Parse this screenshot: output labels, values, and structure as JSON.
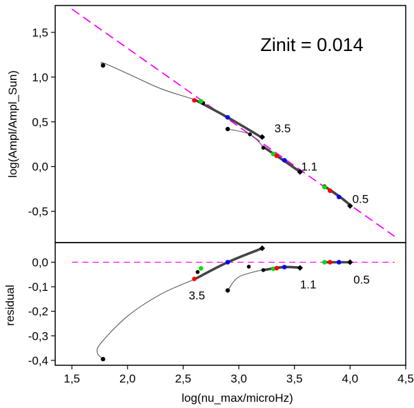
{
  "chart_data": {
    "type": "scatter",
    "xlabel": "log(nu_max/microHz)",
    "xlim": [
      1.35,
      4.5
    ],
    "x_ticks": [
      "1,5",
      "2,0",
      "2,5",
      "3,0",
      "3,5",
      "4,0",
      "4,5"
    ],
    "x_tick_values": [
      1.5,
      2.0,
      2.5,
      3.0,
      3.5,
      4.0,
      4.5
    ],
    "annotation": "Zinit = 0.014",
    "colors": {
      "red": "#ff0000",
      "green": "#00e000",
      "blue": "#0000ff",
      "black": "#000000",
      "magenta": "#ff00ff",
      "grey_line": "#555555"
    },
    "panels": [
      {
        "id": "top",
        "ylabel": "log(Ampl/Ampl_Sun)",
        "ylim": [
          -0.85,
          1.8
        ],
        "y_ticks": [
          "1,5",
          "1,0",
          "0,5",
          "0,0",
          "-0,5"
        ],
        "y_tick_values": [
          1.5,
          1.0,
          0.5,
          0.0,
          -0.5
        ],
        "reference_line": {
          "x": [
            1.5,
            4.4
          ],
          "y": [
            1.76,
            -0.78
          ]
        },
        "tracks": [
          {
            "label": "3.5",
            "label_at": [
              3.32,
              0.43
            ],
            "thin": [
              [
                1.78,
                1.13
              ],
              [
                1.78,
                1.16
              ],
              [
                2.0,
                1.04
              ],
              [
                2.3,
                0.87
              ],
              [
                2.6,
                0.75
              ]
            ],
            "thick": [
              [
                2.6,
                0.75
              ],
              [
                2.9,
                0.55
              ],
              [
                3.2,
                0.33
              ]
            ],
            "end_dot": [
              1.78,
              1.13
            ],
            "start_diamond": [
              3.21,
              0.33
            ],
            "colored_points": [
              {
                "color": "red",
                "x": 2.6,
                "y": 0.74
              },
              {
                "color": "green",
                "x": 2.66,
                "y": 0.73
              },
              {
                "color": "blue",
                "x": 2.9,
                "y": 0.55
              }
            ],
            "black_points": [
              [
                2.68,
                0.71
              ]
            ]
          },
          {
            "label": "1.1",
            "label_at": [
              3.56,
              0.0
            ],
            "thin": [
              [
                2.9,
                0.42
              ],
              [
                3.1,
                0.36
              ],
              [
                3.22,
                0.22
              ]
            ],
            "thick": [
              [
                3.22,
                0.22
              ],
              [
                3.4,
                0.07
              ],
              [
                3.55,
                -0.06
              ]
            ],
            "end_dot": [
              2.9,
              0.42
            ],
            "start_diamond": [
              3.55,
              -0.06
            ],
            "colored_points": [
              {
                "color": "green",
                "x": 3.31,
                "y": 0.14
              },
              {
                "color": "red",
                "x": 3.34,
                "y": 0.12
              },
              {
                "color": "blue",
                "x": 3.41,
                "y": 0.07
              }
            ],
            "black_points": [
              [
                3.22,
                0.21
              ],
              [
                3.1,
                0.36
              ]
            ]
          },
          {
            "label": "0.5",
            "label_at": [
              4.02,
              -0.36
            ],
            "thin": [
              [
                3.77,
                -0.23
              ],
              [
                3.82,
                -0.27
              ]
            ],
            "thick": [
              [
                3.77,
                -0.22
              ],
              [
                3.9,
                -0.33
              ],
              [
                4.0,
                -0.43
              ]
            ],
            "end_dot": [
              3.82,
              -0.27
            ],
            "start_diamond": [
              4.0,
              -0.44
            ],
            "colored_points": [
              {
                "color": "green",
                "x": 3.77,
                "y": -0.23
              },
              {
                "color": "red",
                "x": 3.82,
                "y": -0.27
              },
              {
                "color": "blue",
                "x": 3.9,
                "y": -0.34
              }
            ],
            "black_points": [
              [
                3.77,
                -0.22
              ]
            ]
          }
        ]
      },
      {
        "id": "bottom",
        "ylabel": "residual",
        "ylim": [
          -0.42,
          0.08
        ],
        "y_ticks": [
          "0,0",
          "-0,1",
          "-0,2",
          "-0,3",
          "-0,4"
        ],
        "y_tick_values": [
          0.0,
          -0.1,
          -0.2,
          -0.3,
          -0.4
        ],
        "reference_line": {
          "x": [
            1.5,
            4.4
          ],
          "y": [
            0.0,
            0.0
          ]
        },
        "tracks": [
          {
            "label": "3.5",
            "label_at": [
              2.55,
              -0.135
            ],
            "thin": [
              [
                1.78,
                -0.395
              ],
              [
                1.73,
                -0.37
              ],
              [
                1.76,
                -0.33
              ],
              [
                2.0,
                -0.22
              ],
              [
                2.3,
                -0.13
              ],
              [
                2.6,
                -0.07
              ]
            ],
            "thick": [
              [
                2.6,
                -0.07
              ],
              [
                2.9,
                0.0
              ],
              [
                3.2,
                0.055
              ]
            ],
            "end_dot": [
              1.78,
              -0.395
            ],
            "start_diamond": [
              3.21,
              0.057
            ],
            "colored_points": [
              {
                "color": "red",
                "x": 2.6,
                "y": -0.068
              },
              {
                "color": "green",
                "x": 2.66,
                "y": -0.025
              },
              {
                "color": "blue",
                "x": 2.9,
                "y": 0.0
              }
            ],
            "black_points": [
              [
                2.63,
                -0.04
              ]
            ]
          },
          {
            "label": "1.1",
            "label_at": [
              3.55,
              -0.09
            ],
            "thin": [
              [
                2.9,
                -0.115
              ],
              [
                3.0,
                -0.06
              ],
              [
                3.22,
                -0.03
              ]
            ],
            "thick": [
              [
                3.22,
                -0.032
              ],
              [
                3.4,
                -0.02
              ],
              [
                3.55,
                -0.022
              ]
            ],
            "end_dot": [
              2.9,
              -0.115
            ],
            "start_diamond": [
              3.55,
              -0.023
            ],
            "colored_points": [
              {
                "color": "green",
                "x": 3.31,
                "y": -0.027
              },
              {
                "color": "red",
                "x": 3.34,
                "y": -0.024
              },
              {
                "color": "blue",
                "x": 3.41,
                "y": -0.02
              }
            ],
            "black_points": [
              [
                3.22,
                -0.032
              ],
              [
                3.09,
                -0.018
              ]
            ]
          },
          {
            "label": "0.5",
            "label_at": [
              4.03,
              -0.07
            ],
            "thin": [
              [
                3.77,
                0.0
              ],
              [
                3.82,
                0.0
              ]
            ],
            "thick": [
              [
                3.77,
                0.0
              ],
              [
                3.9,
                0.0
              ],
              [
                4.0,
                0.0
              ]
            ],
            "end_dot": [
              3.82,
              0.0
            ],
            "start_diamond": [
              4.0,
              0.0
            ],
            "colored_points": [
              {
                "color": "green",
                "x": 3.77,
                "y": 0.0
              },
              {
                "color": "red",
                "x": 3.82,
                "y": 0.0
              },
              {
                "color": "blue",
                "x": 3.9,
                "y": 0.0
              }
            ],
            "black_points": [
              [
                3.77,
                0.0
              ]
            ]
          }
        ]
      }
    ]
  }
}
